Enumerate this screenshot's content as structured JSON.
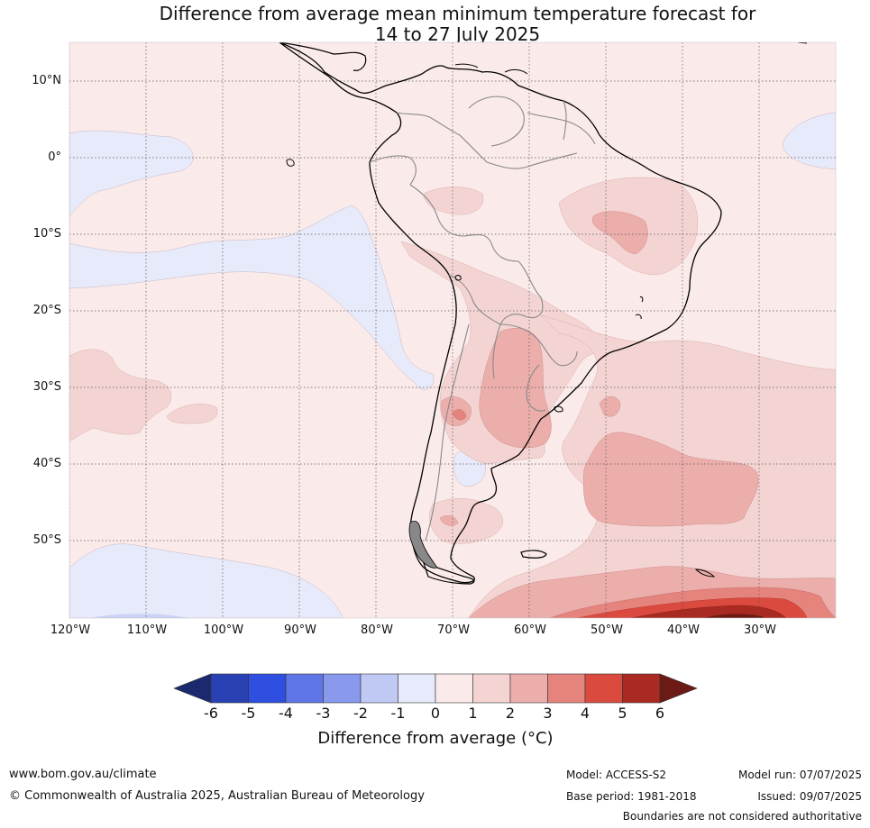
{
  "title": {
    "line1": "Difference from average mean minimum temperature forecast for",
    "line2": "14 to 27 July 2025"
  },
  "map": {
    "lat_labels": [
      "10°N",
      "0°",
      "10°S",
      "20°S",
      "30°S",
      "40°S",
      "50°S"
    ],
    "lon_labels": [
      "120°W",
      "110°W",
      "100°W",
      "90°W",
      "80°W",
      "70°W",
      "60°W",
      "50°W",
      "40°W",
      "30°W"
    ],
    "background_anomaly": "0 to 1"
  },
  "colorbar": {
    "ticks": [
      "-6",
      "-5",
      "-4",
      "-3",
      "-2",
      "-1",
      "0",
      "1",
      "2",
      "3",
      "4",
      "5",
      "6"
    ],
    "colors": {
      "below_min": "#1b2a6e",
      "m6_m5": "#2941b3",
      "m5_m4": "#2f4fe0",
      "m4_m3": "#5f77e6",
      "m3_m2": "#8899ee",
      "m2_m1": "#c0c8f4",
      "m1_0": "#e7eafa",
      "0_1": "#fbeaea",
      "1_2": "#f3d4d3",
      "2_3": "#ebaeab",
      "3_4": "#e5847d",
      "4_5": "#da4a3f",
      "5_6": "#a92a22",
      "above_max": "#6b1a15"
    },
    "label": "Difference from average (°C)"
  },
  "footer": {
    "url": "www.bom.gov.au/climate",
    "copyright": "© Commonwealth of Australia 2025, Australian Bureau of Meteorology",
    "model": "Model: ACCESS-S2",
    "base_period": "Base period: 1981-2018",
    "model_run": "Model run: 07/07/2025",
    "issued": "Issued: 09/07/2025",
    "boundaries": "Boundaries are not considered authoritative"
  }
}
